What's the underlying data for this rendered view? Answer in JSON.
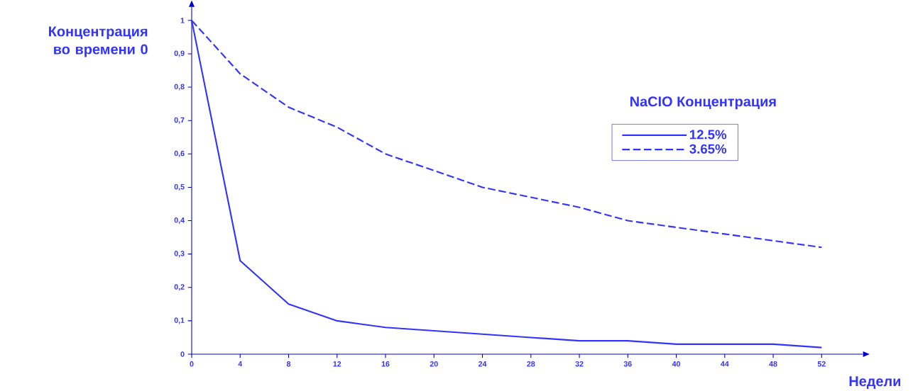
{
  "chart_data": {
    "type": "line",
    "xlabel": "Недели",
    "ylabel": "Концентрация во времени 0",
    "legend_title": "NaCIO Концентрация",
    "legend": "top right",
    "grid": false,
    "marker": "none",
    "x": [
      0,
      4,
      8,
      12,
      16,
      20,
      24,
      28,
      32,
      36,
      40,
      44,
      48,
      52
    ],
    "xlim": [
      0,
      55.4
    ],
    "ylim": [
      0,
      1.04
    ],
    "xticks": [
      0,
      4,
      8,
      12,
      16,
      20,
      24,
      28,
      32,
      36,
      40,
      44,
      48,
      52
    ],
    "yticks": [
      0,
      {
        "value": 0.1,
        "label": "0,1"
      },
      {
        "value": 0.2,
        "label": "0,2"
      },
      {
        "value": 0.3,
        "label": "0,3"
      },
      {
        "value": 0.4,
        "label": "0,4"
      },
      {
        "value": 0.5,
        "label": "0,5"
      },
      {
        "value": 0.6,
        "label": "0,6"
      },
      {
        "value": 0.7,
        "label": "0,7"
      },
      {
        "value": 0.8,
        "label": "0,8"
      },
      {
        "value": 0.9,
        "label": "0,9"
      },
      1
    ],
    "series": [
      {
        "name": "12.5%",
        "color": "#3333ff",
        "line_style": "solid",
        "values": [
          1,
          0.28,
          0.15,
          0.1,
          0.08,
          0.07,
          0.06,
          0.05,
          0.04,
          0.04,
          0.03,
          0.03,
          0.03,
          0.02
        ]
      },
      {
        "name": "3.65%",
        "color": "#3333ff",
        "line_style": "dashed",
        "values": [
          1,
          0.84,
          0.74,
          0.68,
          0.6,
          0.55,
          0.5,
          0.47,
          0.44,
          0.4,
          0.38,
          0.36,
          0.34,
          0.32
        ]
      }
    ]
  }
}
